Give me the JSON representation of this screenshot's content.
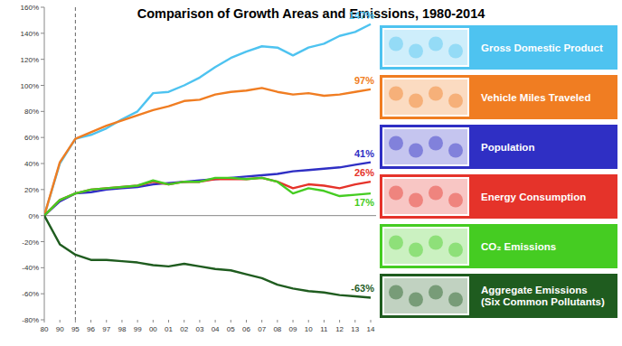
{
  "chart_data": {
    "type": "line",
    "title": "Comparison of Growth Areas and Emissions, 1980-2014",
    "categories": [
      "80",
      "90",
      "95",
      "96",
      "97",
      "98",
      "99",
      "00",
      "01",
      "02",
      "03",
      "04",
      "05",
      "06",
      "07",
      "08",
      "09",
      "10",
      "11",
      "12",
      "13",
      "14"
    ],
    "series": [
      {
        "name": "Gross Domestic Product",
        "color": "#4ec3f0",
        "end_label": "147%",
        "values": [
          0,
          40,
          59,
          62,
          67,
          74,
          80,
          94,
          95,
          100,
          106,
          114,
          121,
          126,
          130,
          129,
          123,
          129,
          132,
          138,
          141,
          147
        ]
      },
      {
        "name": "Vehicle Miles Traveled",
        "color": "#f07d22",
        "end_label": "97%",
        "values": [
          0,
          41,
          59,
          64,
          69,
          73,
          77,
          81,
          84,
          88,
          89,
          93,
          95,
          96,
          98,
          95,
          93,
          94,
          92,
          93,
          95,
          97
        ]
      },
      {
        "name": "Population",
        "color": "#2f2fc4",
        "end_label": "41%",
        "values": [
          0,
          11,
          17,
          18,
          20,
          21,
          22,
          24,
          25,
          26,
          27,
          28,
          29,
          30,
          31,
          32,
          34,
          35,
          36,
          37,
          39,
          41
        ]
      },
      {
        "name": "Energy Consumption",
        "color": "#e5332a",
        "end_label": "26%",
        "values": [
          0,
          12,
          17,
          20,
          21,
          22,
          23,
          26,
          24,
          26,
          26,
          28,
          28,
          28,
          29,
          26,
          21,
          24,
          23,
          21,
          24,
          26
        ]
      },
      {
        "name": "CO₂ Emissions",
        "color": "#45cc22",
        "end_label": "17%",
        "values": [
          0,
          12,
          17,
          20,
          21,
          22,
          23,
          27,
          24,
          26,
          26,
          29,
          29,
          28,
          29,
          26,
          17,
          21,
          19,
          15,
          16,
          17
        ]
      },
      {
        "name": "Aggregate Emissions (Six Common Pollutants)",
        "color": "#1f5c1f",
        "end_label": "-63%",
        "values": [
          0,
          -22,
          -30,
          -34,
          -34,
          -35,
          -36,
          -38,
          -39,
          -37,
          -39,
          -41,
          -42,
          -45,
          -48,
          -53,
          -56,
          -58,
          -59,
          -61,
          -62,
          -63
        ]
      }
    ],
    "ylim": [
      -80,
      160
    ],
    "yticks": [
      {
        "value": -80,
        "label": "-80%"
      },
      {
        "value": -60,
        "label": "-60%"
      },
      {
        "value": -40,
        "label": "-40%"
      },
      {
        "value": -20,
        "label": "-20%"
      },
      {
        "value": 0,
        "label": "0%"
      },
      {
        "value": 20,
        "label": "20%"
      },
      {
        "value": 40,
        "label": "40%"
      },
      {
        "value": 60,
        "label": "60%"
      },
      {
        "value": 80,
        "label": "80%"
      },
      {
        "value": 100,
        "label": "100%"
      },
      {
        "value": 120,
        "label": "120%"
      },
      {
        "value": 140,
        "label": "140%"
      },
      {
        "value": 160,
        "label": "160%"
      }
    ],
    "grid": false,
    "legend": "right",
    "reference_line": {
      "category": "95",
      "line_style": "dashed"
    }
  }
}
